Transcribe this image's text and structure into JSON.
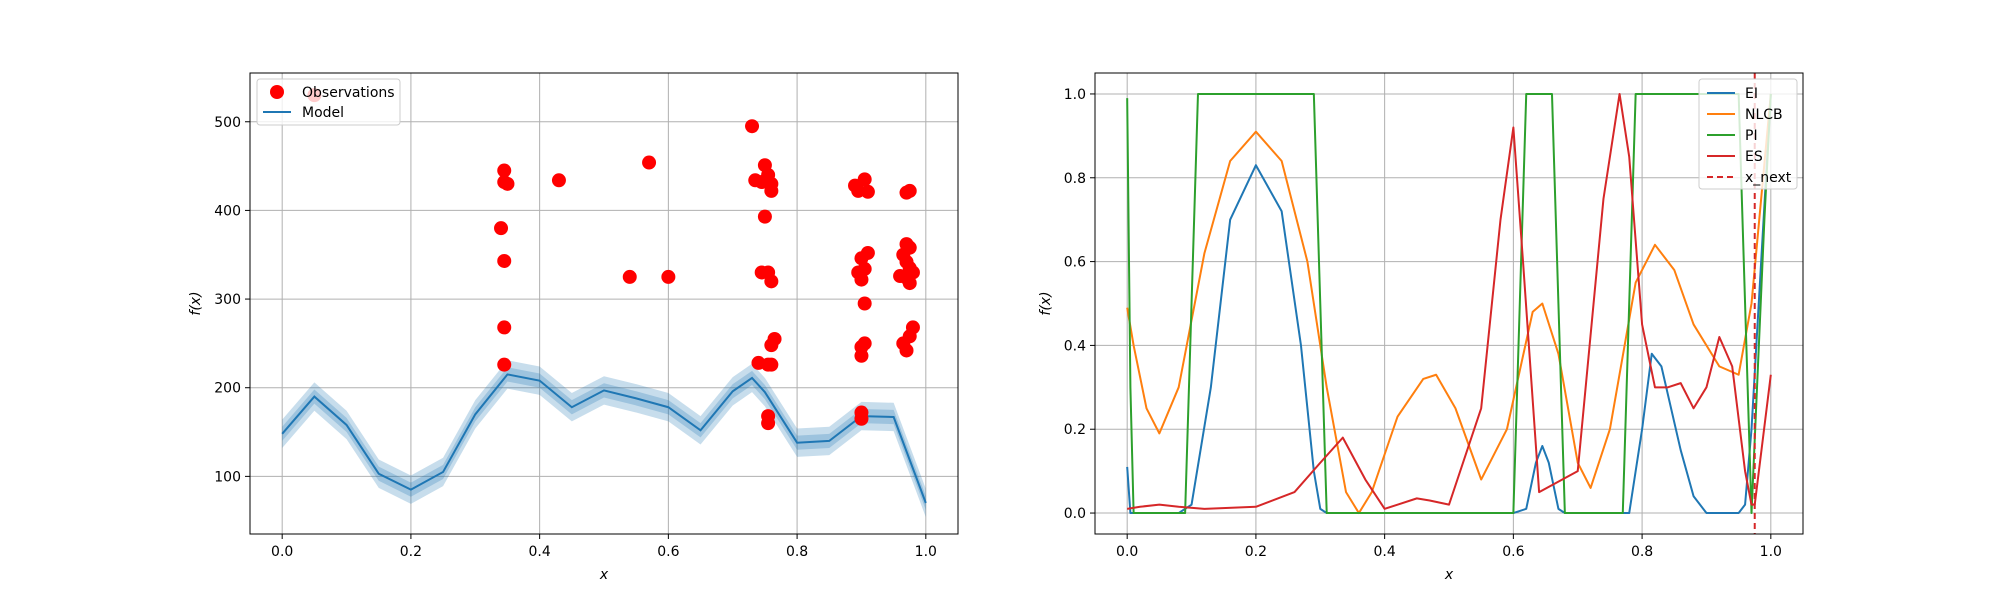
{
  "chart_data": [
    {
      "type": "scatter",
      "xlabel": "x",
      "ylabel": "f(x)",
      "xlim": [
        -0.05,
        1.05
      ],
      "ylim": [
        35,
        555
      ],
      "xticks": [
        0.0,
        0.2,
        0.4,
        0.6,
        0.8,
        1.0
      ],
      "yticks": [
        100,
        200,
        300,
        400,
        500
      ],
      "grid": true,
      "legend_position": "top-left",
      "colors": {
        "observations": "#ff0000",
        "model": "#1f77b4"
      },
      "series": [
        {
          "name": "Observations",
          "type": "scatter",
          "points": [
            [
              0.05,
              530
            ],
            [
              0.34,
              380
            ],
            [
              0.345,
              445
            ],
            [
              0.345,
              432
            ],
            [
              0.35,
              430
            ],
            [
              0.345,
              343
            ],
            [
              0.345,
              268
            ],
            [
              0.345,
              226
            ],
            [
              0.43,
              434
            ],
            [
              0.54,
              325
            ],
            [
              0.57,
              454
            ],
            [
              0.6,
              325
            ],
            [
              0.73,
              495
            ],
            [
              0.735,
              434
            ],
            [
              0.745,
              432
            ],
            [
              0.75,
              451
            ],
            [
              0.755,
              440
            ],
            [
              0.76,
              430
            ],
            [
              0.76,
              422
            ],
            [
              0.75,
              393
            ],
            [
              0.745,
              330
            ],
            [
              0.755,
              330
            ],
            [
              0.76,
              320
            ],
            [
              0.765,
              255
            ],
            [
              0.76,
              248
            ],
            [
              0.74,
              228
            ],
            [
              0.755,
              226
            ],
            [
              0.76,
              226
            ],
            [
              0.755,
              168
            ],
            [
              0.755,
              160
            ],
            [
              0.89,
              428
            ],
            [
              0.895,
              422
            ],
            [
              0.905,
              435
            ],
            [
              0.91,
              421
            ],
            [
              0.9,
              346
            ],
            [
              0.91,
              352
            ],
            [
              0.895,
              330
            ],
            [
              0.905,
              334
            ],
            [
              0.9,
              322
            ],
            [
              0.905,
              295
            ],
            [
              0.905,
              250
            ],
            [
              0.9,
              246
            ],
            [
              0.9,
              236
            ],
            [
              0.9,
              172
            ],
            [
              0.9,
              165
            ],
            [
              0.97,
              420
            ],
            [
              0.975,
              422
            ],
            [
              0.97,
              362
            ],
            [
              0.975,
              358
            ],
            [
              0.965,
              350
            ],
            [
              0.97,
              342
            ],
            [
              0.975,
              335
            ],
            [
              0.96,
              326
            ],
            [
              0.97,
              324
            ],
            [
              0.98,
              330
            ],
            [
              0.975,
              318
            ],
            [
              0.98,
              268
            ],
            [
              0.975,
              258
            ],
            [
              0.965,
              250
            ],
            [
              0.97,
              242
            ]
          ]
        },
        {
          "name": "Model",
          "type": "line",
          "x": [
            0.0,
            0.05,
            0.1,
            0.15,
            0.2,
            0.25,
            0.3,
            0.35,
            0.4,
            0.45,
            0.5,
            0.55,
            0.6,
            0.65,
            0.7,
            0.73,
            0.75,
            0.8,
            0.85,
            0.9,
            0.95,
            1.0
          ],
          "values": [
            148,
            190,
            158,
            103,
            85,
            105,
            170,
            215,
            208,
            178,
            197,
            188,
            178,
            152,
            196,
            211,
            195,
            138,
            140,
            168,
            167,
            70
          ],
          "uncertainty_band_halfwidths": [
            8,
            16
          ]
        }
      ]
    },
    {
      "type": "line",
      "xlabel": "x",
      "ylabel": "f(x)",
      "xlim": [
        -0.05,
        1.05
      ],
      "ylim": [
        -0.05,
        1.05
      ],
      "xticks": [
        0.0,
        0.2,
        0.4,
        0.6,
        0.8,
        1.0
      ],
      "yticks": [
        0.0,
        0.2,
        0.4,
        0.6,
        0.8,
        1.0
      ],
      "grid": true,
      "legend_position": "top-right",
      "series": [
        {
          "name": "EI",
          "color": "#1f77b4",
          "x": [
            0.0,
            0.005,
            0.03,
            0.08,
            0.1,
            0.13,
            0.16,
            0.2,
            0.24,
            0.27,
            0.29,
            0.3,
            0.31,
            0.6,
            0.62,
            0.635,
            0.645,
            0.655,
            0.67,
            0.68,
            0.78,
            0.8,
            0.815,
            0.83,
            0.86,
            0.88,
            0.9,
            0.95,
            0.96,
            0.97,
            1.0
          ],
          "values": [
            0.11,
            0.0,
            0.0,
            0.0,
            0.02,
            0.3,
            0.7,
            0.83,
            0.72,
            0.4,
            0.1,
            0.01,
            0.0,
            0.0,
            0.01,
            0.12,
            0.16,
            0.12,
            0.01,
            0.0,
            0.0,
            0.2,
            0.38,
            0.35,
            0.15,
            0.04,
            0.0,
            0.0,
            0.02,
            0.2,
            1.0
          ]
        },
        {
          "name": "NLCB",
          "color": "#ff7f0e",
          "x": [
            0.0,
            0.01,
            0.03,
            0.05,
            0.08,
            0.12,
            0.16,
            0.2,
            0.24,
            0.28,
            0.31,
            0.34,
            0.36,
            0.38,
            0.42,
            0.46,
            0.48,
            0.51,
            0.55,
            0.59,
            0.63,
            0.645,
            0.67,
            0.7,
            0.72,
            0.75,
            0.79,
            0.82,
            0.85,
            0.88,
            0.92,
            0.95,
            0.97,
            1.0
          ],
          "values": [
            0.49,
            0.4,
            0.25,
            0.19,
            0.3,
            0.62,
            0.84,
            0.91,
            0.84,
            0.6,
            0.3,
            0.05,
            0.0,
            0.05,
            0.23,
            0.32,
            0.33,
            0.25,
            0.08,
            0.2,
            0.48,
            0.5,
            0.38,
            0.12,
            0.06,
            0.2,
            0.55,
            0.64,
            0.58,
            0.45,
            0.35,
            0.33,
            0.5,
            1.0
          ]
        },
        {
          "name": "PI",
          "color": "#2ca02c",
          "x": [
            0.0,
            0.005,
            0.01,
            0.09,
            0.1,
            0.11,
            0.29,
            0.3,
            0.31,
            0.6,
            0.61,
            0.62,
            0.66,
            0.67,
            0.68,
            0.77,
            0.78,
            0.79,
            0.95,
            0.96,
            0.97,
            0.99,
            1.0
          ],
          "values": [
            0.99,
            0.3,
            0.0,
            0.0,
            0.5,
            1.0,
            1.0,
            0.5,
            0.0,
            0.0,
            0.5,
            1.0,
            1.0,
            0.5,
            0.0,
            0.0,
            0.5,
            1.0,
            1.0,
            0.5,
            0.0,
            0.7,
            1.0
          ]
        },
        {
          "name": "ES",
          "color": "#d62728",
          "x": [
            0.0,
            0.02,
            0.05,
            0.08,
            0.12,
            0.2,
            0.26,
            0.3,
            0.335,
            0.37,
            0.4,
            0.42,
            0.45,
            0.47,
            0.5,
            0.55,
            0.58,
            0.6,
            0.615,
            0.64,
            0.7,
            0.74,
            0.765,
            0.78,
            0.8,
            0.82,
            0.84,
            0.86,
            0.88,
            0.9,
            0.92,
            0.94,
            0.96,
            0.97,
            0.975,
            1.0
          ],
          "values": [
            0.01,
            0.015,
            0.02,
            0.015,
            0.01,
            0.015,
            0.05,
            0.12,
            0.18,
            0.08,
            0.01,
            0.02,
            0.035,
            0.03,
            0.02,
            0.25,
            0.7,
            0.92,
            0.6,
            0.05,
            0.1,
            0.75,
            1.0,
            0.85,
            0.45,
            0.3,
            0.3,
            0.31,
            0.25,
            0.3,
            0.42,
            0.35,
            0.1,
            0.02,
            0.02,
            0.33
          ]
        },
        {
          "name": "x_next",
          "color": "#d62728",
          "style": "dashed",
          "vertical_line_x": 0.975
        }
      ]
    }
  ]
}
